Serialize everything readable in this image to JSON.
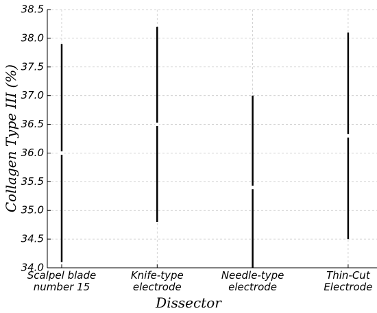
{
  "chart_data": {
    "type": "errorbar",
    "xlabel": "Dissector",
    "ylabel": "Collagen Type III (%)",
    "categories": [
      "Scalpel blade\nnumber 15",
      "Knife-type\nelectrode",
      "Needle-type\nelectrode",
      "Thin-Cut\nElectrode"
    ],
    "values": [
      36.0,
      36.5,
      35.4,
      36.3
    ],
    "errors": [
      1.9,
      1.7,
      1.6,
      1.8
    ],
    "color": "#000000",
    "ylim": [
      34.0,
      38.5
    ],
    "yticks": [
      {
        "value": 34.0,
        "label": "34.0"
      },
      34.5,
      {
        "value": 35.0,
        "label": "35.0"
      },
      35.5,
      {
        "value": 36.0,
        "label": "36.0"
      },
      36.5,
      {
        "value": 37.0,
        "label": "37.0"
      },
      37.5,
      {
        "value": 38.0,
        "label": "38.0"
      },
      38.5
    ],
    "grid": true
  }
}
